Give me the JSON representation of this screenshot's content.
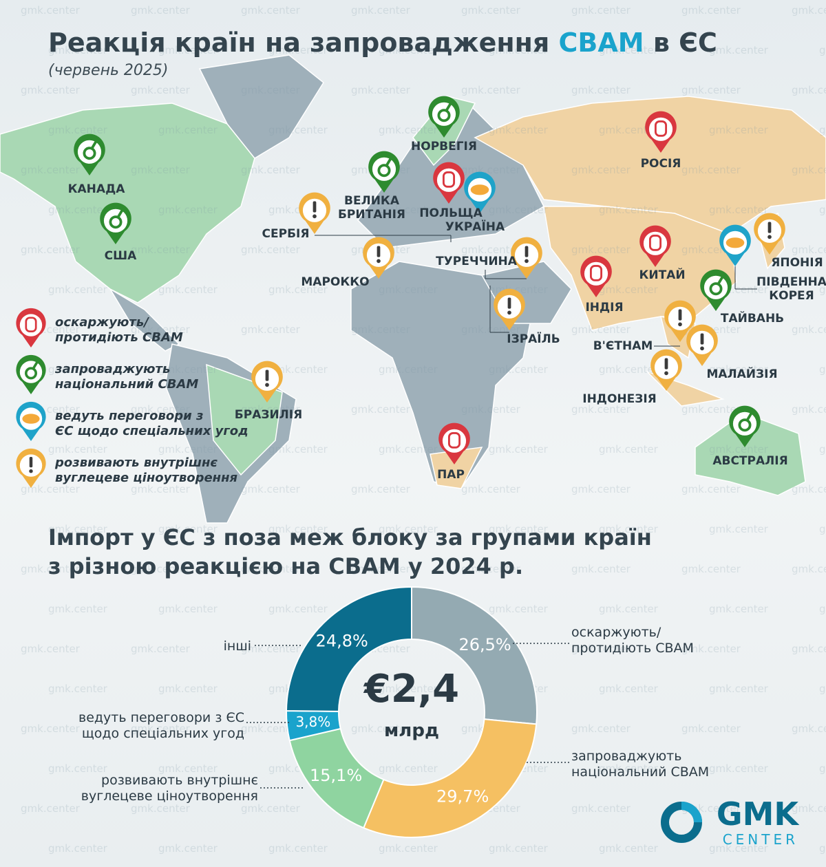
{
  "title_before": "Реакція країн на запровадження",
  "title_highlight": "CBAM",
  "title_after": "в ЄС",
  "subtitle": "(червень 2025)",
  "watermark": "gmk.center",
  "map": {
    "legend": [
      {
        "label": "оскаржують/\nпротидіють CBAM",
        "color": "#d9373f"
      },
      {
        "label": "запроваджують\nнаціональний CBAM",
        "color": "#2e8b2f"
      },
      {
        "label": "ведуть переговори з\nЄС щодо спеціальних угод",
        "color": "#1fa3c9"
      },
      {
        "label": "розвивають внутрішнє\nвуглецеве ціноутворення",
        "color": "#f0b040"
      }
    ],
    "countries": [
      {
        "name": "КАНАДА",
        "group": 1
      },
      {
        "name": "США",
        "group": 1
      },
      {
        "name": "НОРВЕГІЯ",
        "group": 1
      },
      {
        "name": "ВЕЛИКА\nБРИТАНІЯ",
        "group": 1
      },
      {
        "name": "ПОЛЬЩА",
        "group": 0
      },
      {
        "name": "УКРАЇНА",
        "group": 2
      },
      {
        "name": "СЕРБІЯ",
        "group": 3
      },
      {
        "name": "МАРОККО",
        "group": 3
      },
      {
        "name": "ТУРЕЧЧИНА",
        "group": 3
      },
      {
        "name": "ІЗРАЇЛЬ",
        "group": 3
      },
      {
        "name": "РОСІЯ",
        "group": 0
      },
      {
        "name": "КИТАЙ",
        "group": 0
      },
      {
        "name": "ІНДІЯ",
        "group": 0
      },
      {
        "name": "ПІВДЕННА\nКОРЕЯ",
        "group": 2
      },
      {
        "name": "ЯПОНІЯ",
        "group": 3
      },
      {
        "name": "ТАЙВАНЬ",
        "group": 1
      },
      {
        "name": "В'ЄТНАМ",
        "group": 3
      },
      {
        "name": "МАЛАЙЗІЯ",
        "group": 3
      },
      {
        "name": "ІНДОНЕЗІЯ",
        "group": 3
      },
      {
        "name": "БРАЗИЛІЯ",
        "group": 3
      },
      {
        "name": "ПАР",
        "group": 0
      },
      {
        "name": "АВСТРАЛІЯ",
        "group": 1
      }
    ]
  },
  "chart_data": {
    "type": "donut",
    "title": "Імпорт у ЄС з поза меж блоку за групами країн\nз різною реакцією на CBAM у 2024 р.",
    "center_value": "€2,4",
    "center_unit": "млрд",
    "categories": [
      "оскаржують/\nпротидіють CBAM",
      "запроваджують\nнаціональний CBAM",
      "розвивають внутрішнє\nвуглецеве ціноутворення",
      "ведуть переговори з ЄС\nщодо спеціальних угод",
      "інші"
    ],
    "values": [
      26.5,
      29.7,
      15.1,
      3.8,
      24.8
    ],
    "value_labels": [
      "26,5%",
      "29,7%",
      "15,1%",
      "3,8%",
      "24,8%"
    ],
    "colors": [
      "#94aab2",
      "#f5c062",
      "#8fd4a0",
      "#1aa3cc",
      "#0b6d8d"
    ]
  },
  "brand": {
    "name": "GMK",
    "sub": "CENTER"
  }
}
